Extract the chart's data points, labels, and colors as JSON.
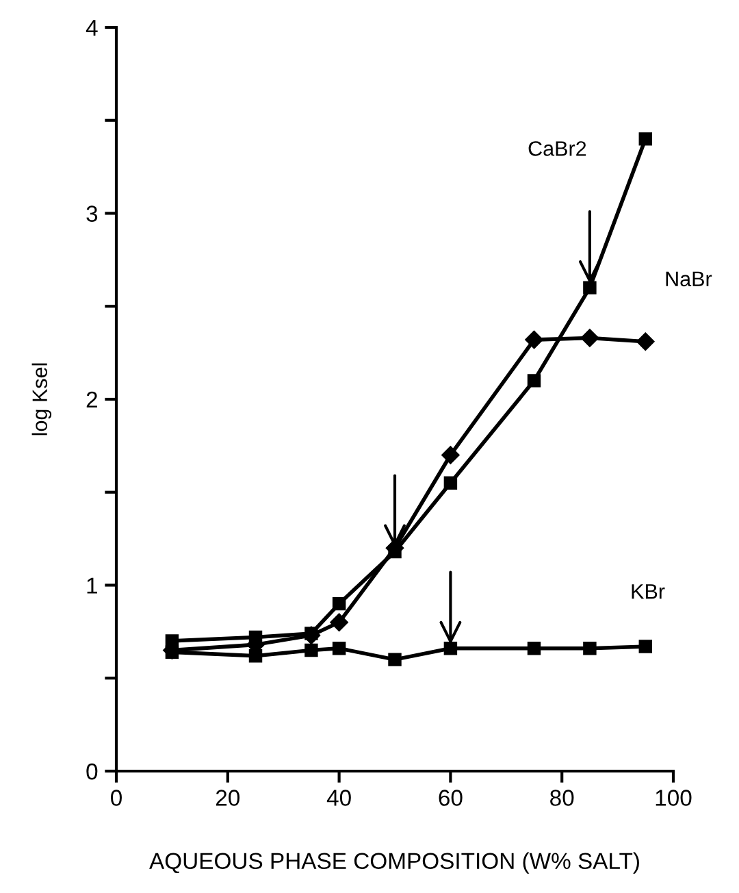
{
  "chart_data": {
    "type": "line",
    "xlabel": "AQUEOUS PHASE COMPOSITION (W% SALT)",
    "ylabel": "log Ksel",
    "xlim": [
      0,
      100
    ],
    "ylim": [
      0,
      4
    ],
    "xticks": [
      0,
      20,
      40,
      60,
      80,
      100
    ],
    "yticks": [
      0,
      {
        "value": 0.5,
        "label": null
      },
      1,
      {
        "value": 1.5,
        "label": null
      },
      2,
      {
        "value": 2.5,
        "label": null
      },
      3,
      {
        "value": 3.5,
        "label": null
      },
      4
    ],
    "grid": false,
    "legend": false,
    "line_style": "solid",
    "series": [
      {
        "name": "CaBr2",
        "color": "#000000",
        "marker": "square",
        "x": [
          10,
          25,
          35,
          40,
          50,
          60,
          75,
          85,
          95
        ],
        "values": [
          0.7,
          0.72,
          0.74,
          0.9,
          1.18,
          1.55,
          2.1,
          2.6,
          3.4
        ]
      },
      {
        "name": "NaBr",
        "color": "#000000",
        "marker": "diamond",
        "x": [
          10,
          25,
          35,
          40,
          50,
          60,
          75,
          85,
          95
        ],
        "values": [
          0.65,
          0.68,
          0.73,
          0.8,
          1.2,
          1.7,
          2.32,
          2.33,
          2.31
        ]
      },
      {
        "name": "KBr",
        "color": "#000000",
        "marker": "square",
        "x": [
          10,
          25,
          35,
          40,
          50,
          60,
          75,
          85,
          95
        ],
        "values": [
          0.64,
          0.62,
          0.65,
          0.66,
          0.6,
          0.66,
          0.66,
          0.66,
          0.67
        ]
      }
    ]
  }
}
